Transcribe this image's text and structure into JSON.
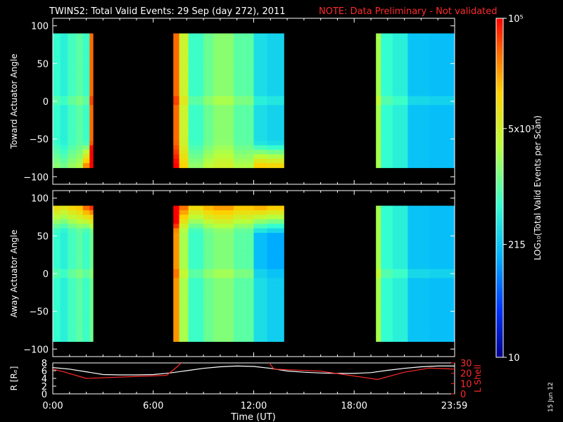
{
  "header": {
    "title": "TWINS2: Total Valid Events: 29 Sep (day 272), 2011",
    "note": "NOTE: Data Preliminary - Not validated",
    "note_color": "#ff2a2a"
  },
  "colorbar": {
    "label": "LOG₁₀(Total Valid Events per Scan)",
    "ticks": [
      {
        "value": 10,
        "text": "10"
      },
      {
        "value": 215,
        "text": "215"
      },
      {
        "value": 5000,
        "text": "5x10³"
      },
      {
        "value": 100000,
        "text": "10⁵"
      }
    ],
    "range": [
      10,
      100000
    ],
    "scale": "log",
    "palette": [
      "#00008c",
      "#0033ff",
      "#00b4ff",
      "#34ffd0",
      "#b8ff3c",
      "#ffd200",
      "#ff6a00",
      "#ff0000"
    ]
  },
  "footer": {
    "date_stamp": "15 Jun 12"
  },
  "chart_data": [
    {
      "type": "heatmap",
      "name": "toward",
      "ylabel": "Toward Actuator Angle",
      "ylim": [
        -110,
        110
      ],
      "yticks": [
        -100,
        -50,
        0,
        50,
        100
      ],
      "xlim": [
        0,
        24
      ],
      "data_blocks": [
        {
          "start": 0.0,
          "end": 2.4,
          "angle_range": [
            -88,
            90
          ],
          "columns": [
            {
              "start": 0.0,
              "end": 0.45,
              "level": 0.45
            },
            {
              "start": 0.45,
              "end": 0.9,
              "level": 0.42
            },
            {
              "start": 0.9,
              "end": 1.4,
              "level": 0.47
            },
            {
              "start": 1.4,
              "end": 1.8,
              "level": 0.5
            },
            {
              "start": 1.8,
              "end": 2.2,
              "level": 0.46
            },
            {
              "start": 2.2,
              "end": 2.4,
              "level": 0.9
            }
          ]
        },
        {
          "start": 7.2,
          "end": 13.8,
          "angle_range": [
            -88,
            90
          ],
          "columns": [
            {
              "start": 7.2,
              "end": 7.55,
              "level": 0.9
            },
            {
              "start": 7.55,
              "end": 8.1,
              "level": 0.66
            },
            {
              "start": 8.1,
              "end": 9.0,
              "level": 0.46
            },
            {
              "start": 9.0,
              "end": 9.6,
              "level": 0.52
            },
            {
              "start": 9.6,
              "end": 10.8,
              "level": 0.56
            },
            {
              "start": 10.8,
              "end": 12.0,
              "level": 0.5
            },
            {
              "start": 12.0,
              "end": 12.8,
              "level": 0.38
            },
            {
              "start": 12.8,
              "end": 13.8,
              "level": 0.36
            }
          ]
        },
        {
          "start": 19.3,
          "end": 24.0,
          "angle_range": [
            -88,
            90
          ],
          "columns": [
            {
              "start": 19.3,
              "end": 19.6,
              "level": 0.6
            },
            {
              "start": 19.6,
              "end": 20.3,
              "level": 0.45
            },
            {
              "start": 20.3,
              "end": 21.2,
              "level": 0.42
            },
            {
              "start": 21.2,
              "end": 22.5,
              "level": 0.33
            },
            {
              "start": 22.5,
              "end": 24.0,
              "level": 0.32
            }
          ]
        }
      ]
    },
    {
      "type": "heatmap",
      "name": "away",
      "ylabel": "Away Actuator Angle",
      "ylim": [
        -110,
        110
      ],
      "yticks": [
        -100,
        -50,
        0,
        50,
        100
      ],
      "xlim": [
        0,
        24
      ],
      "data_blocks": [
        {
          "start": 0.0,
          "end": 2.4,
          "angle_range": [
            -90,
            90
          ],
          "columns": [
            {
              "start": 0.0,
              "end": 0.45,
              "level": 0.45
            },
            {
              "start": 0.45,
              "end": 0.9,
              "level": 0.42
            },
            {
              "start": 0.9,
              "end": 1.4,
              "level": 0.47
            },
            {
              "start": 1.4,
              "end": 1.8,
              "level": 0.5
            },
            {
              "start": 1.8,
              "end": 2.2,
              "level": 0.46
            },
            {
              "start": 2.2,
              "end": 2.4,
              "level": 0.52
            }
          ]
        },
        {
          "start": 7.2,
          "end": 13.8,
          "angle_range": [
            -90,
            90
          ],
          "columns": [
            {
              "start": 7.2,
              "end": 7.55,
              "level": 0.85
            },
            {
              "start": 7.55,
              "end": 8.1,
              "level": 0.6
            },
            {
              "start": 8.1,
              "end": 9.0,
              "level": 0.46
            },
            {
              "start": 9.0,
              "end": 9.6,
              "level": 0.52
            },
            {
              "start": 9.6,
              "end": 10.8,
              "level": 0.55
            },
            {
              "start": 10.8,
              "end": 12.0,
              "level": 0.5
            },
            {
              "start": 12.0,
              "end": 12.8,
              "level": 0.38
            },
            {
              "start": 12.8,
              "end": 13.8,
              "level": 0.35
            }
          ]
        },
        {
          "start": 19.3,
          "end": 24.0,
          "angle_range": [
            -90,
            90
          ],
          "columns": [
            {
              "start": 19.3,
              "end": 19.6,
              "level": 0.6
            },
            {
              "start": 19.6,
              "end": 20.3,
              "level": 0.45
            },
            {
              "start": 20.3,
              "end": 21.2,
              "level": 0.42
            },
            {
              "start": 21.2,
              "end": 22.5,
              "level": 0.33
            },
            {
              "start": 22.5,
              "end": 24.0,
              "level": 0.32
            }
          ]
        }
      ]
    },
    {
      "type": "line",
      "name": "orbit",
      "xlabel": "Time (UT)",
      "xlim": [
        0,
        24
      ],
      "xticks": [
        {
          "value": 0,
          "text": "0:00"
        },
        {
          "value": 6,
          "text": "6:00"
        },
        {
          "value": 12,
          "text": "12:00"
        },
        {
          "value": 18,
          "text": "18:00"
        },
        {
          "value": 23.98,
          "text": "23:59"
        }
      ],
      "ylabel_left": "R [Rₑ]",
      "ylim_left": [
        0,
        8
      ],
      "yticks_left": [
        0,
        2,
        4,
        6,
        8
      ],
      "ylabel_right": "L Shell",
      "ylim_right": [
        0,
        30
      ],
      "yticks_right": [
        0,
        10,
        20,
        30
      ],
      "right_color": "#ff2a2a",
      "series": [
        {
          "axis": "left",
          "color": "#ffffff",
          "x": [
            0,
            1,
            2,
            3,
            4,
            5,
            6,
            7,
            8,
            9,
            10,
            11,
            12,
            13,
            14,
            15,
            16,
            17,
            18,
            19,
            20,
            21,
            22,
            23,
            24
          ],
          "y": [
            6.8,
            6.4,
            5.7,
            5.0,
            4.9,
            4.9,
            5.0,
            5.4,
            6.0,
            6.6,
            7.0,
            7.2,
            7.1,
            6.6,
            5.9,
            5.6,
            5.4,
            5.3,
            5.3,
            5.5,
            6.1,
            6.6,
            7.0,
            7.2,
            7.2
          ]
        },
        {
          "axis": "right",
          "color": "#ff2a2a",
          "x": [
            0,
            0.5,
            2,
            6.8,
            7.4,
            8.2,
            12.6,
            13.2,
            16,
            19.4,
            21,
            22.5,
            24
          ],
          "y": [
            24,
            22,
            15,
            18,
            26,
            38,
            38,
            24,
            22,
            14,
            21,
            25,
            24
          ]
        }
      ]
    }
  ]
}
